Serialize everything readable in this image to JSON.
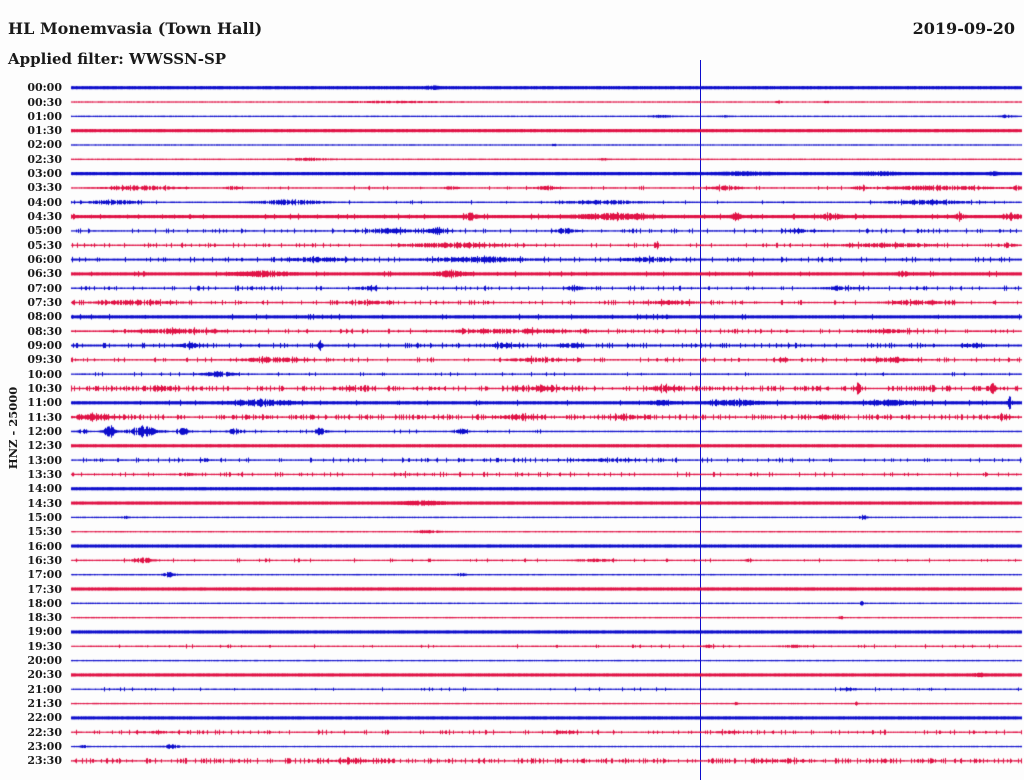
{
  "header": {
    "title": "HL Monemvasia (Town Hall)",
    "date": "2019-09-20",
    "filter_line": "Applied filter: WWSSN-SP"
  },
  "axis": {
    "channel_scale": "HNZ - 25000"
  },
  "chart_data": {
    "type": "line",
    "subtype": "helicorder-day-plot",
    "title": "HL Monemvasia (Town Hall)",
    "date": "2019-09-20",
    "applied_filter": "WWSSN-SP",
    "channel_scale_label": "HNZ - 25000",
    "minutes_per_row": 30,
    "rows_total": 48,
    "legend_position": "none",
    "grid": false,
    "colors": {
      "even_rows": "#0d0dcc",
      "odd_rows": "#e01245",
      "background": "#fdfdfd",
      "text": "#1a1a1a"
    },
    "time_marker": {
      "x_fraction": 0.662,
      "color": "#0d0dcc"
    },
    "rows": [
      {
        "label": "00:00",
        "amp": 1.4,
        "noise": 0,
        "bursts": [
          [
            0.38,
            0.012,
            1.2
          ]
        ]
      },
      {
        "label": "00:30",
        "amp": 0.5,
        "noise": 0,
        "bursts": [
          [
            0.34,
            0.1,
            0.7
          ],
          [
            0.745,
            0.006,
            1.2
          ],
          [
            0.795,
            0.005,
            1.0
          ]
        ]
      },
      {
        "label": "01:00",
        "amp": 0.5,
        "noise": 0,
        "bursts": [
          [
            0.62,
            0.025,
            0.9
          ],
          [
            0.69,
            0.01,
            0.9
          ],
          [
            0.985,
            0.012,
            1.4
          ]
        ]
      },
      {
        "label": "01:30",
        "amp": 1.4,
        "noise": 0,
        "bursts": []
      },
      {
        "label": "02:00",
        "amp": 0.5,
        "noise": 0,
        "bursts": [
          [
            0.508,
            0.004,
            1.1
          ]
        ]
      },
      {
        "label": "02:30",
        "amp": 0.5,
        "noise": 0,
        "bursts": [
          [
            0.25,
            0.045,
            1.1
          ],
          [
            0.56,
            0.01,
            0.8
          ]
        ]
      },
      {
        "label": "03:00",
        "amp": 1.4,
        "noise": 0,
        "bursts": [
          [
            0.71,
            0.05,
            0.9
          ],
          [
            0.85,
            0.04,
            0.9
          ],
          [
            0.97,
            0.01,
            1.0
          ]
        ]
      },
      {
        "label": "03:30",
        "amp": 0.55,
        "noise": 1,
        "bursts": [
          [
            0.075,
            0.06,
            2.2
          ],
          [
            0.17,
            0.012,
            1.8
          ],
          [
            0.4,
            0.012,
            1.8
          ],
          [
            0.5,
            0.02,
            2.0
          ],
          [
            0.69,
            0.03,
            2.0
          ],
          [
            0.83,
            0.012,
            1.8
          ],
          [
            0.91,
            0.1,
            2.2
          ],
          [
            0.995,
            0.01,
            2.2
          ]
        ]
      },
      {
        "label": "04:00",
        "amp": 0.55,
        "noise": 1,
        "bursts": [
          [
            0.045,
            0.045,
            2.2
          ],
          [
            0.23,
            0.06,
            2.4
          ],
          [
            0.56,
            0.07,
            1.8
          ],
          [
            0.9,
            0.08,
            1.8
          ]
        ]
      },
      {
        "label": "04:30",
        "amp": 1.4,
        "noise": 1,
        "bursts": [
          [
            0.42,
            0.012,
            2.6
          ],
          [
            0.57,
            0.07,
            2.2
          ],
          [
            0.7,
            0.008,
            3.4
          ],
          [
            0.8,
            0.02,
            2.2
          ],
          [
            0.935,
            0.008,
            3.0
          ],
          [
            0.99,
            0.015,
            2.6
          ]
        ]
      },
      {
        "label": "05:00",
        "amp": 0.55,
        "noise": 2,
        "bursts": [
          [
            0.33,
            0.05,
            2.2
          ],
          [
            0.385,
            0.02,
            3.0
          ],
          [
            0.52,
            0.02,
            2.6
          ],
          [
            0.77,
            0.03,
            1.4
          ]
        ]
      },
      {
        "label": "05:30",
        "amp": 0.55,
        "noise": 2,
        "bursts": [
          [
            0.4,
            0.09,
            2.2
          ],
          [
            0.617,
            0.004,
            4.5
          ],
          [
            0.86,
            0.09,
            1.8
          ],
          [
            0.985,
            0.015,
            2.2
          ]
        ]
      },
      {
        "label": "06:00",
        "amp": 0.8,
        "noise": 2,
        "bursts": [
          [
            0.26,
            0.05,
            1.8
          ],
          [
            0.43,
            0.09,
            2.2
          ],
          [
            0.61,
            0.05,
            1.8
          ]
        ]
      },
      {
        "label": "06:30",
        "amp": 1.4,
        "noise": 1,
        "bursts": [
          [
            0.2,
            0.05,
            2.2
          ],
          [
            0.4,
            0.03,
            2.2
          ],
          [
            0.875,
            0.01,
            1.8
          ]
        ]
      },
      {
        "label": "07:00",
        "amp": 0.55,
        "noise": 2,
        "bursts": [
          [
            0.31,
            0.02,
            1.8
          ],
          [
            0.53,
            0.02,
            1.8
          ],
          [
            0.81,
            0.04,
            1.4
          ]
        ]
      },
      {
        "label": "07:30",
        "amp": 0.55,
        "noise": 2,
        "bursts": [
          [
            0.07,
            0.07,
            2.4
          ],
          [
            0.31,
            0.04,
            1.8
          ],
          [
            0.63,
            0.05,
            2.0
          ],
          [
            0.89,
            0.06,
            2.0
          ]
        ]
      },
      {
        "label": "08:00",
        "amp": 1.4,
        "noise": 1,
        "bursts": []
      },
      {
        "label": "08:30",
        "amp": 0.6,
        "noise": 2,
        "bursts": [
          [
            0.11,
            0.09,
            2.2
          ],
          [
            0.46,
            0.13,
            1.8
          ],
          [
            0.86,
            0.05,
            1.6
          ]
        ]
      },
      {
        "label": "09:00",
        "amp": 0.8,
        "noise": 2,
        "bursts": [
          [
            0.125,
            0.02,
            2.2
          ],
          [
            0.262,
            0.004,
            6.5
          ],
          [
            0.455,
            0.025,
            2.2
          ],
          [
            0.525,
            0.02,
            2.2
          ],
          [
            0.95,
            0.02,
            1.8
          ]
        ]
      },
      {
        "label": "09:30",
        "amp": 0.55,
        "noise": 2,
        "bursts": [
          [
            0.21,
            0.06,
            2.2
          ],
          [
            0.49,
            0.05,
            2.0
          ],
          [
            0.75,
            0.01,
            2.6
          ],
          [
            0.86,
            0.05,
            2.0
          ]
        ]
      },
      {
        "label": "10:00",
        "amp": 0.55,
        "noise": 1,
        "bursts": [
          [
            0.155,
            0.03,
            2.6
          ]
        ]
      },
      {
        "label": "10:30",
        "amp": 0.6,
        "noise": 3,
        "bursts": [
          [
            0.1,
            0.02,
            2.2
          ],
          [
            0.3,
            0.02,
            2.2
          ],
          [
            0.5,
            0.05,
            2.2
          ],
          [
            0.625,
            0.03,
            2.6
          ],
          [
            0.828,
            0.005,
            5.5
          ],
          [
            0.906,
            0.005,
            5.5
          ],
          [
            0.922,
            0.004,
            3.5
          ],
          [
            0.97,
            0.006,
            5.5
          ]
        ]
      },
      {
        "label": "11:00",
        "amp": 1.4,
        "noise": 1,
        "bursts": [
          [
            0.2,
            0.05,
            2.4
          ],
          [
            0.62,
            0.02,
            1.8
          ],
          [
            0.7,
            0.04,
            2.0
          ],
          [
            0.86,
            0.04,
            2.0
          ],
          [
            0.988,
            0.004,
            5.5
          ]
        ]
      },
      {
        "label": "11:30",
        "amp": 0.6,
        "noise": 3,
        "bursts": [
          [
            0.025,
            0.04,
            2.2
          ],
          [
            0.47,
            0.04,
            1.8
          ],
          [
            0.585,
            0.03,
            1.8
          ],
          [
            0.795,
            0.02,
            1.8
          ],
          [
            0.98,
            0.015,
            2.6
          ]
        ]
      },
      {
        "label": "12:00",
        "amp": 0.55,
        "noise": 1,
        "noise_range": [
          0,
          0.5
        ],
        "bursts": [
          [
            0.012,
            0.007,
            3.5
          ],
          [
            0.04,
            0.012,
            5.5
          ],
          [
            0.075,
            0.028,
            5.5
          ],
          [
            0.118,
            0.01,
            3.5
          ],
          [
            0.172,
            0.014,
            2.8
          ],
          [
            0.262,
            0.012,
            3.5
          ],
          [
            0.41,
            0.012,
            2.8
          ]
        ]
      },
      {
        "label": "12:30",
        "amp": 1.4,
        "noise": 0,
        "bursts": []
      },
      {
        "label": "13:00",
        "amp": 0.55,
        "noise": 2,
        "bursts": [
          [
            0.14,
            0.01,
            1.2
          ],
          [
            0.56,
            0.06,
            1.2
          ]
        ]
      },
      {
        "label": "13:30",
        "amp": 0.55,
        "noise": 2,
        "bursts": [
          [
            0.12,
            0.02,
            1.4
          ],
          [
            0.35,
            0.02,
            1.2
          ]
        ]
      },
      {
        "label": "14:00",
        "amp": 1.4,
        "noise": 0,
        "bursts": []
      },
      {
        "label": "14:30",
        "amp": 1.4,
        "noise": 0,
        "bursts": [
          [
            0.37,
            0.04,
            1.2
          ]
        ]
      },
      {
        "label": "15:00",
        "amp": 0.5,
        "noise": 0,
        "bursts": [
          [
            0.057,
            0.006,
            1.2
          ],
          [
            0.833,
            0.008,
            2.6
          ]
        ]
      },
      {
        "label": "15:30",
        "amp": 0.5,
        "noise": 0,
        "bursts": [
          [
            0.375,
            0.025,
            1.2
          ]
        ]
      },
      {
        "label": "16:00",
        "amp": 1.4,
        "noise": 0,
        "bursts": []
      },
      {
        "label": "16:30",
        "amp": 0.5,
        "noise": 1,
        "bursts": [
          [
            0.075,
            0.02,
            2.6
          ],
          [
            0.55,
            0.035,
            1.2
          ],
          [
            0.713,
            0.005,
            1.8
          ]
        ]
      },
      {
        "label": "17:00",
        "amp": 0.5,
        "noise": 0,
        "bursts": [
          [
            0.103,
            0.012,
            2.6
          ],
          [
            0.41,
            0.01,
            1.2
          ]
        ]
      },
      {
        "label": "17:30",
        "amp": 1.4,
        "noise": 0,
        "bursts": []
      },
      {
        "label": "18:00",
        "amp": 0.5,
        "noise": 0,
        "bursts": [
          [
            0.832,
            0.005,
            1.8
          ]
        ]
      },
      {
        "label": "18:30",
        "amp": 0.5,
        "noise": 0,
        "bursts": [
          [
            0.81,
            0.004,
            1.8
          ]
        ]
      },
      {
        "label": "19:00",
        "amp": 1.4,
        "noise": 0,
        "bursts": []
      },
      {
        "label": "19:30",
        "amp": 0.5,
        "noise": 1,
        "bursts": [
          [
            0.67,
            0.01,
            1.2
          ],
          [
            0.76,
            0.02,
            1.2
          ]
        ]
      },
      {
        "label": "20:00",
        "amp": 0.5,
        "noise": 0,
        "bursts": []
      },
      {
        "label": "20:30",
        "amp": 1.4,
        "noise": 0,
        "bursts": [
          [
            0.955,
            0.01,
            1.2
          ]
        ]
      },
      {
        "label": "21:00",
        "amp": 0.5,
        "noise": 1,
        "bursts": [
          [
            0.82,
            0.015,
            1.2
          ]
        ]
      },
      {
        "label": "21:30",
        "amp": 0.5,
        "noise": 0,
        "bursts": [
          [
            0.7,
            0.004,
            1.8
          ],
          [
            0.827,
            0.004,
            1.6
          ]
        ]
      },
      {
        "label": "22:00",
        "amp": 1.4,
        "noise": 0,
        "bursts": []
      },
      {
        "label": "22:30",
        "amp": 0.5,
        "noise": 2,
        "bursts": [
          [
            0.09,
            0.03,
            1.2
          ],
          [
            0.52,
            0.03,
            1.2
          ],
          [
            0.69,
            0.02,
            1.2
          ]
        ]
      },
      {
        "label": "23:00",
        "amp": 0.5,
        "noise": 0,
        "bursts": [
          [
            0.012,
            0.006,
            1.8
          ],
          [
            0.105,
            0.016,
            2.0
          ]
        ]
      },
      {
        "label": "23:30",
        "amp": 0.55,
        "noise": 3,
        "bursts": [
          [
            0.3,
            0.05,
            1.2
          ],
          [
            0.75,
            0.04,
            1.4
          ]
        ]
      }
    ]
  }
}
